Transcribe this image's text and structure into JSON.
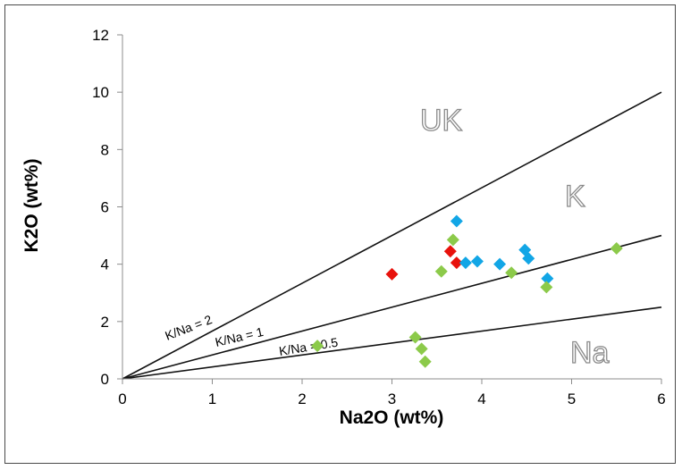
{
  "chart_data": {
    "type": "scatter",
    "xlabel": "Na2O (wt%)",
    "ylabel": "K2O (wt%)",
    "xlim": [
      0,
      6
    ],
    "ylim": [
      0,
      12
    ],
    "x_ticks": [
      "0",
      "1",
      "2",
      "3",
      "4",
      "5",
      "6"
    ],
    "y_ticks": [
      "0",
      "2",
      "4",
      "6",
      "8",
      "10",
      "12"
    ],
    "grid": false,
    "legend": "none",
    "reference_lines": [
      {
        "label": "K/Na = 2",
        "x": [
          0,
          6
        ],
        "y": [
          0,
          10
        ]
      },
      {
        "label": "K/Na = 1",
        "x": [
          0,
          6
        ],
        "y": [
          0,
          5
        ]
      },
      {
        "label": "K/Na = 0.5",
        "x": [
          0,
          6
        ],
        "y": [
          0,
          2.5
        ]
      }
    ],
    "regions": [
      "UK",
      "K",
      "Na"
    ],
    "series": [
      {
        "color": "#e8120c",
        "marker": "diamond",
        "points": [
          [
            3.0,
            3.65
          ],
          [
            3.65,
            4.45
          ],
          [
            3.72,
            4.05
          ]
        ]
      },
      {
        "color": "#12a6e6",
        "marker": "diamond",
        "points": [
          [
            3.72,
            5.5
          ],
          [
            3.82,
            4.05
          ],
          [
            3.95,
            4.1
          ],
          [
            4.2,
            4.0
          ],
          [
            4.48,
            4.5
          ],
          [
            4.52,
            4.2
          ],
          [
            4.73,
            3.5
          ]
        ]
      },
      {
        "color": "#8cca4a",
        "marker": "diamond",
        "points": [
          [
            2.17,
            1.15
          ],
          [
            3.26,
            1.45
          ],
          [
            3.33,
            1.05
          ],
          [
            3.37,
            0.6
          ],
          [
            3.55,
            3.75
          ],
          [
            3.68,
            4.85
          ],
          [
            4.33,
            3.7
          ],
          [
            4.72,
            3.2
          ],
          [
            5.5,
            4.55
          ]
        ]
      }
    ]
  }
}
